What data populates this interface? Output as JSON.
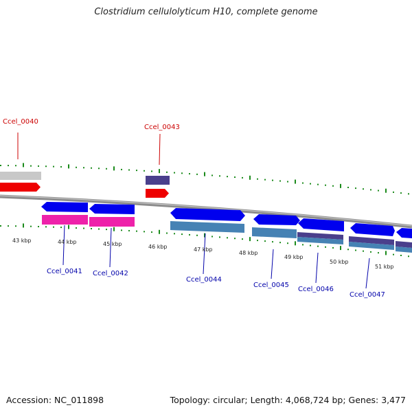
{
  "title": "Clostridium cellulolyticum H10, complete genome",
  "footer": {
    "accession": "Accession: NC_011898",
    "summary": "Topology: circular; Length: 4,068,724 bp; Genes: 3,477"
  },
  "colors": {
    "backbone": "#8c8c8c",
    "tick": "#1a8a1a",
    "label_red": "#cc0000",
    "label_blue": "#0000aa",
    "gene_blue": "#0000ee",
    "gene_red": "#ee0000",
    "gene_gray": "#c8c8c8",
    "gene_purple": "#4a3f8c",
    "feature_magenta": "#ee22aa",
    "feature_steelblue": "#4682b4"
  },
  "scale_labels": [
    "43 kbp",
    "44 kbp",
    "45 kbp",
    "46 kbp",
    "47 kbp",
    "48 kbp",
    "49 kbp",
    "50 kbp",
    "51 kbp"
  ],
  "gene_labels": {
    "top": [
      "Ccel_0040",
      "Ccel_0043"
    ],
    "bottom": [
      "Ccel_0041",
      "Ccel_0042",
      "Ccel_0044",
      "Ccel_0045",
      "Ccel_0046",
      "Ccel_0047"
    ]
  }
}
